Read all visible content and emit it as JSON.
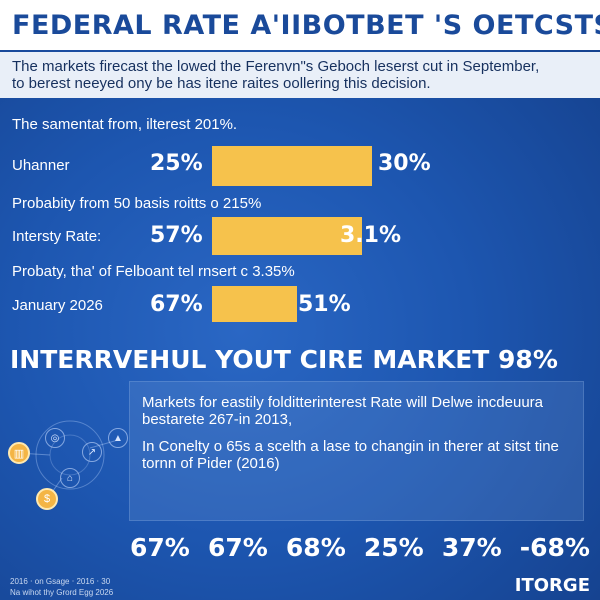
{
  "header": {
    "title": "FEDERAL RATE A'IIBOTBET 'S OETCSTS"
  },
  "subheading": {
    "line1": "The markets firecast the lowed the Ferenvn\"s Geboch leserst cut in September,",
    "line2": "to berest neeyed ony be has itene raites oollering this decision."
  },
  "rows": {
    "intro": "The samentat from, ilterest 201%.",
    "row1": {
      "label": "Uhanner",
      "left_pct": "25%",
      "right_pct": "30%",
      "fill": 0.64
    },
    "note2": "Probabity from 50 basis roitts o 215%",
    "row2": {
      "label": "Intersty Rate:",
      "left_pct": "57%",
      "right_pct": "3.1%",
      "fill": 0.6
    },
    "note3": "Probaty, tha' of Felboant tel rnsert c 3.35%",
    "row3": {
      "label": "January 2026",
      "left_pct": "67%",
      "right_pct": "51%",
      "fill": 0.34
    }
  },
  "section": {
    "title": "INTERRVEHUL YOUT CIRE MARKET 98%"
  },
  "info": {
    "para1": "Markets for eastily folditterinterest Rate will Delwe incdeuura bestarete 267-in 2013,",
    "para2": "In Conelty o 65s a scelth a lase to changin in therer at sitst tine tornn of Pider (2016)"
  },
  "bottom_stats": [
    "67%",
    "67%",
    "68%",
    "25%",
    "37%",
    "-68%"
  ],
  "footer": {
    "line1": "2016 ‧ on Gsage ‧ 2016 ‧ 30",
    "line2": "Na wihot thy Grord Egg 2026",
    "logo": "ITORGE"
  },
  "icons": [
    "chart-icon",
    "globe-icon",
    "trend-icon",
    "dollar-icon",
    "bank-icon",
    "growth-icon"
  ],
  "colors": {
    "accent": "#f6c24c",
    "background": "#1d56b0",
    "header_bg": "#ffffff",
    "header_text": "#1a4a9a"
  }
}
